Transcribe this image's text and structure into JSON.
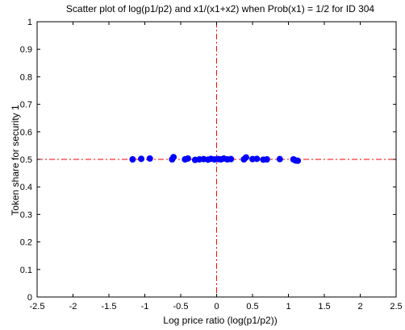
{
  "chart_data": {
    "type": "scatter",
    "title": "Scatter plot of log(p1/p2) and x1/(x1+x2) when Prob(x1) = 1/2 for ID 304",
    "xlabel": "Log price ratio (log(p1/p2))",
    "ylabel": "Token share for security 1",
    "xlim": [
      -2.5,
      2.5
    ],
    "ylim": [
      0,
      1
    ],
    "xticks": [
      -2.5,
      -2,
      -1.5,
      -1,
      -0.5,
      0,
      0.5,
      1,
      1.5,
      2,
      2.5
    ],
    "xtick_labels": [
      "-2.5",
      "-2",
      "-1.5",
      "-1",
      "-0.5",
      "0",
      "0.5",
      "1",
      "1.5",
      "2",
      "2.5"
    ],
    "yticks": [
      0,
      0.1,
      0.2,
      0.3,
      0.4,
      0.5,
      0.6,
      0.7,
      0.8,
      0.9,
      1
    ],
    "ytick_labels": [
      "0",
      "0.1",
      "0.2",
      "0.3",
      "0.4",
      "0.5",
      "0.6",
      "0.7",
      "0.8",
      "0.9",
      "1"
    ],
    "grid": false,
    "reference_lines": {
      "vertical_x": 0,
      "horizontal_y": 0.5,
      "style": "dash-dot",
      "color": "#ff0000"
    },
    "marker_color": "#0000ff",
    "points": [
      {
        "x": -1.17,
        "y": 0.5
      },
      {
        "x": -1.05,
        "y": 0.502
      },
      {
        "x": -0.93,
        "y": 0.503
      },
      {
        "x": -0.62,
        "y": 0.5
      },
      {
        "x": -0.6,
        "y": 0.508
      },
      {
        "x": -0.44,
        "y": 0.5
      },
      {
        "x": -0.4,
        "y": 0.503
      },
      {
        "x": -0.3,
        "y": 0.498
      },
      {
        "x": -0.24,
        "y": 0.5
      },
      {
        "x": -0.18,
        "y": 0.501
      },
      {
        "x": -0.12,
        "y": 0.499
      },
      {
        "x": -0.08,
        "y": 0.502
      },
      {
        "x": -0.03,
        "y": 0.5
      },
      {
        "x": 0.02,
        "y": 0.501
      },
      {
        "x": 0.06,
        "y": 0.5
      },
      {
        "x": 0.1,
        "y": 0.503
      },
      {
        "x": 0.15,
        "y": 0.5
      },
      {
        "x": 0.2,
        "y": 0.501
      },
      {
        "x": 0.38,
        "y": 0.5
      },
      {
        "x": 0.41,
        "y": 0.507
      },
      {
        "x": 0.5,
        "y": 0.501
      },
      {
        "x": 0.56,
        "y": 0.502
      },
      {
        "x": 0.65,
        "y": 0.499
      },
      {
        "x": 0.7,
        "y": 0.5
      },
      {
        "x": 0.88,
        "y": 0.501
      },
      {
        "x": 1.07,
        "y": 0.5
      },
      {
        "x": 1.1,
        "y": 0.496
      },
      {
        "x": 1.13,
        "y": 0.495
      }
    ]
  }
}
